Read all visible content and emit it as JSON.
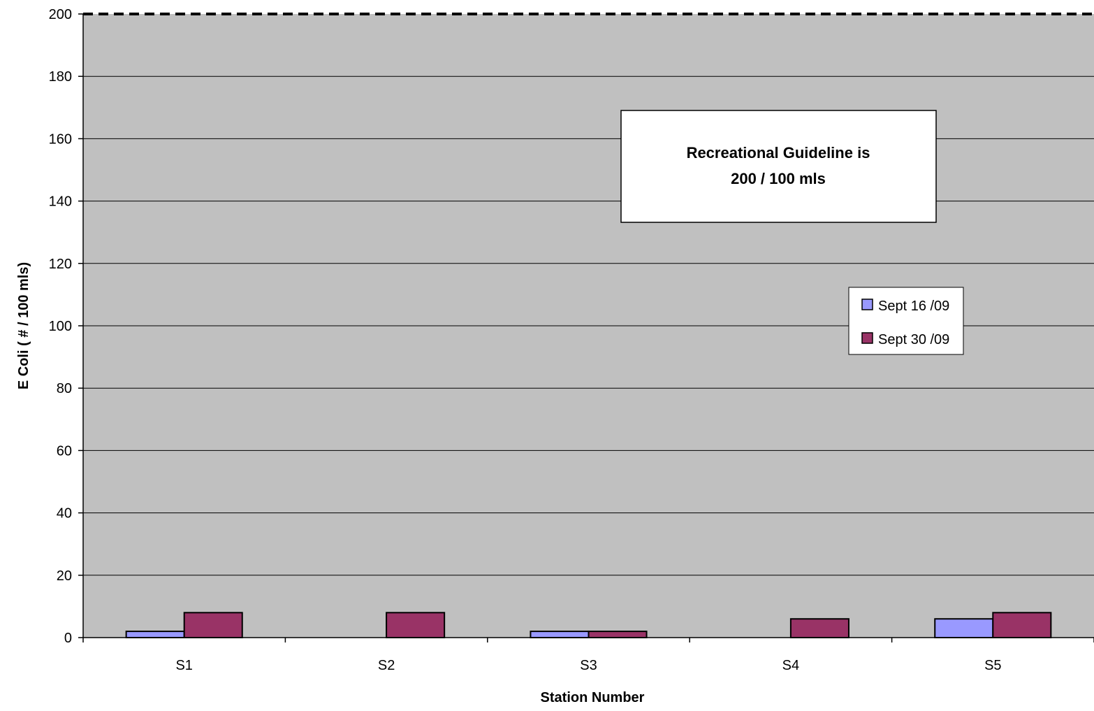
{
  "chart_data": {
    "type": "bar",
    "title": "",
    "xlabel": "Station Number",
    "ylabel": "E Coli ( # / 100 mls)",
    "ylim": [
      0,
      200
    ],
    "yticks": [
      0,
      20,
      40,
      60,
      80,
      100,
      120,
      140,
      160,
      180,
      200
    ],
    "ytick_labels": [
      "0",
      "20",
      "40",
      "60",
      "80",
      "100",
      "120",
      "140",
      "160",
      "180",
      "200"
    ],
    "categories": [
      "S1",
      "S2",
      "S3",
      "S4",
      "S5"
    ],
    "series": [
      {
        "name": "Sept 16 /09",
        "color": "#9999ff",
        "values": [
          2,
          0,
          2,
          0,
          6
        ]
      },
      {
        "name": "Sept 30 /09",
        "color": "#993366",
        "values": [
          8,
          8,
          2,
          6,
          8
        ]
      }
    ],
    "reference_line": {
      "value": 200,
      "style": "dashed"
    },
    "annotation": {
      "lines": [
        "Recreational Guideline is",
        "200 / 100 mls"
      ]
    },
    "legend_position": "right",
    "grid": true,
    "plot_background": "#c0c0c0"
  }
}
